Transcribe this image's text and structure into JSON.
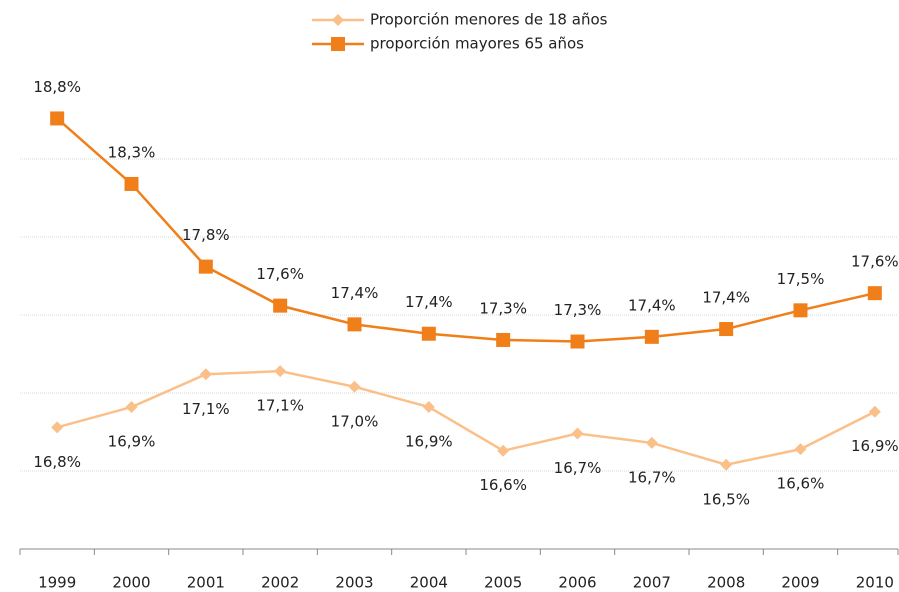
{
  "chart_data": {
    "type": "line",
    "categories": [
      "1999",
      "2000",
      "2001",
      "2002",
      "2003",
      "2004",
      "2005",
      "2006",
      "2007",
      "2008",
      "2009",
      "2010"
    ],
    "series": [
      {
        "name": "Proporción menores de 18 años",
        "color": "#fbc08a",
        "marker": "diamond",
        "values": [
          16.78,
          16.91,
          17.12,
          17.14,
          17.04,
          16.91,
          16.63,
          16.74,
          16.68,
          16.54,
          16.64,
          16.88
        ],
        "value_labels": [
          "16,8%",
          "16,9%",
          "17,1%",
          "17,1%",
          "17,0%",
          "16,9%",
          "16,6%",
          "16,7%",
          "16,7%",
          "16,5%",
          "16,6%",
          "16,9%"
        ]
      },
      {
        "name": "proporción mayores 65 años",
        "color": "#f07f1a",
        "marker": "square",
        "values": [
          18.76,
          18.34,
          17.81,
          17.56,
          17.44,
          17.38,
          17.34,
          17.33,
          17.36,
          17.41,
          17.53,
          17.64
        ],
        "value_labels": [
          "18,8%",
          "18,3%",
          "17,8%",
          "17,6%",
          "17,4%",
          "17,4%",
          "17,3%",
          "17,3%",
          "17,4%",
          "17,4%",
          "17,5%",
          "17,6%"
        ]
      }
    ],
    "ylim": [
      16,
      19
    ],
    "yticks": [
      16,
      16.5,
      17,
      17.5,
      18,
      18.5
    ],
    "grid": true
  }
}
